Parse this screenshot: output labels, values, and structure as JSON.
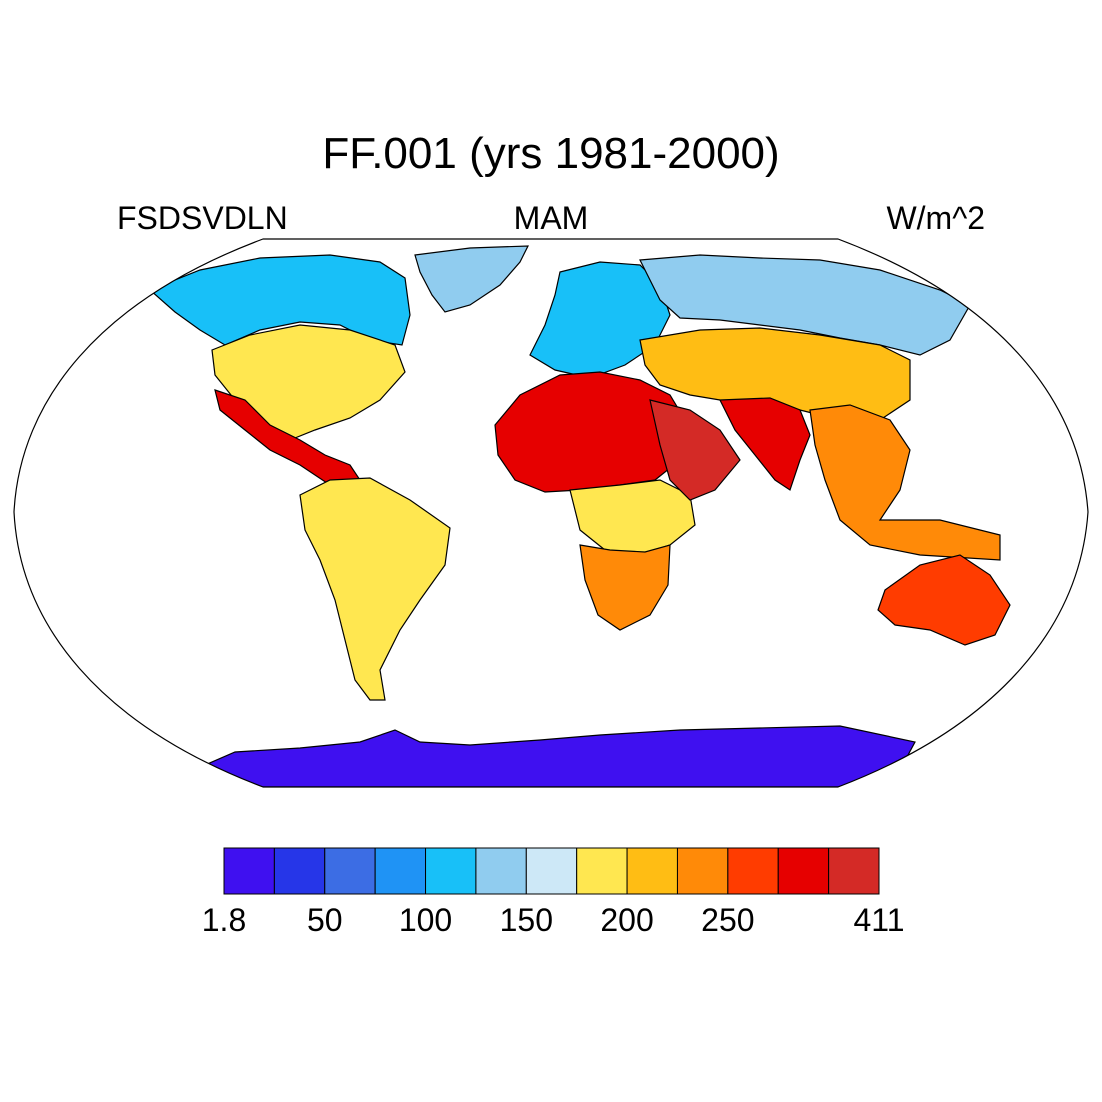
{
  "title": "FF.001 (yrs 1981-2000)",
  "left_label": "FSDSVDLN",
  "center_label": "MAM",
  "right_label": "W/m^2",
  "chart_data": {
    "type": "heatmap",
    "projection": "robinson",
    "variable": "FSDSVDLN",
    "season": "MAM",
    "units": "W/m^2",
    "colorbar": {
      "tick_labels": [
        "1.8",
        "50",
        "100",
        "150",
        "200",
        "250",
        "411"
      ],
      "colors": [
        "#3f10f0",
        "#2636e8",
        "#3c6de4",
        "#1f93f5",
        "#18c0f8",
        "#90ccef",
        "#cde8f7",
        "#ffe750",
        "#ffbd14",
        "#ff8a08",
        "#ff3c00",
        "#e60000",
        "#d42a26"
      ]
    },
    "regions": [
      {
        "name": "Antarctica",
        "level": 0
      },
      {
        "name": "Greenland",
        "level": 5
      },
      {
        "name": "Canada",
        "level": 4
      },
      {
        "name": "USA",
        "level": 7
      },
      {
        "name": "Mexico",
        "level": 11
      },
      {
        "name": "South America",
        "level": 7
      },
      {
        "name": "Europe",
        "level": 4
      },
      {
        "name": "Siberia",
        "level": 5
      },
      {
        "name": "Central Asia",
        "level": 8
      },
      {
        "name": "Sahara",
        "level": 11
      },
      {
        "name": "Central Africa",
        "level": 7
      },
      {
        "name": "Southern Africa",
        "level": 9
      },
      {
        "name": "Arabia",
        "level": 12
      },
      {
        "name": "India",
        "level": 11
      },
      {
        "name": "Southeast Asia",
        "level": 9
      },
      {
        "name": "Australia",
        "level": 10
      }
    ]
  }
}
